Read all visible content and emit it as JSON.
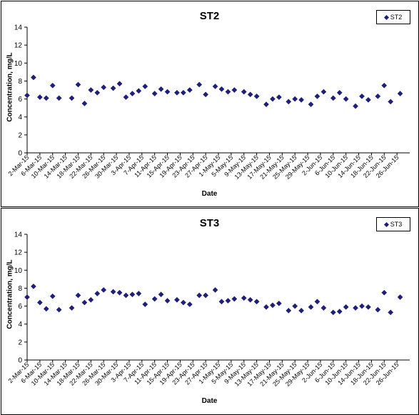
{
  "chart_data": [
    {
      "type": "scatter",
      "title": "ST2",
      "ylabel": "Concentration, mg/L",
      "xlabel": "Date",
      "ylim": [
        0,
        14
      ],
      "yticks": [
        "0",
        "2",
        "4",
        "6",
        "8",
        "10",
        "12",
        "14"
      ],
      "xticks": [
        "2-Mar-15",
        "6-Mar-15",
        "10-Mar-15",
        "14-Mar-15",
        "18-Mar-15",
        "22-Mar-15",
        "26-Mar-15",
        "30-Mar-15",
        "3-Apr-15",
        "7-Apr-15",
        "11-Apr-15",
        "15-Apr-15",
        "19-Apr-15",
        "23-Apr-15",
        "27-Apr-15",
        "1-May-15",
        "5-May-15",
        "9-May-15",
        "13-May-15",
        "17-May-15",
        "21-May-15",
        "25-May-15",
        "29-May-15",
        "2-Jun-15",
        "6-Jun-15",
        "10-Jun-15",
        "14-Jun-15",
        "18-Jun-15",
        "22-Jun-15",
        "26-Jun-15"
      ],
      "xlim": [
        "2-Mar-15",
        "30-Jun-15"
      ],
      "grid": false,
      "legend_position": "top-right",
      "color": "#1f1f7a",
      "series": [
        {
          "name": "ST2",
          "x": [
            "2-Mar-15",
            "4-Mar-15",
            "6-Mar-15",
            "8-Mar-15",
            "10-Mar-15",
            "12-Mar-15",
            "16-Mar-15",
            "18-Mar-15",
            "20-Mar-15",
            "22-Mar-15",
            "24-Mar-15",
            "26-Mar-15",
            "29-Mar-15",
            "31-Mar-15",
            "2-Apr-15",
            "4-Apr-15",
            "6-Apr-15",
            "8-Apr-15",
            "11-Apr-15",
            "13-Apr-15",
            "15-Apr-15",
            "18-Apr-15",
            "20-Apr-15",
            "22-Apr-15",
            "25-Apr-15",
            "27-Apr-15",
            "30-Apr-15",
            "2-May-15",
            "4-May-15",
            "6-May-15",
            "9-May-15",
            "11-May-15",
            "13-May-15",
            "16-May-15",
            "18-May-15",
            "20-May-15",
            "23-May-15",
            "25-May-15",
            "27-May-15",
            "30-May-15",
            "1-Jun-15",
            "3-Jun-15",
            "6-Jun-15",
            "8-Jun-15",
            "10-Jun-15",
            "13-Jun-15",
            "15-Jun-15",
            "17-Jun-15",
            "20-Jun-15",
            "22-Jun-15",
            "24-Jun-15",
            "27-Jun-15"
          ],
          "y": [
            6.4,
            8.4,
            6.2,
            6.1,
            7.5,
            6.1,
            6.1,
            7.6,
            5.5,
            7.0,
            6.7,
            7.3,
            7.2,
            7.7,
            6.2,
            6.6,
            6.9,
            7.4,
            6.6,
            7.1,
            6.8,
            6.7,
            6.7,
            7.0,
            7.6,
            6.5,
            7.4,
            7.1,
            6.8,
            7.0,
            6.8,
            6.5,
            6.3,
            5.4,
            6.0,
            6.2,
            5.7,
            6.0,
            5.9,
            5.4,
            6.3,
            6.8,
            6.1,
            6.7,
            6.0,
            5.2,
            6.3,
            5.9,
            6.3,
            7.5,
            5.7,
            6.6
          ]
        }
      ]
    },
    {
      "type": "scatter",
      "title": "ST3",
      "ylabel": "Concentration, mg/L",
      "xlabel": "Date",
      "ylim": [
        0,
        14
      ],
      "yticks": [
        "0",
        "2",
        "4",
        "6",
        "8",
        "10",
        "12",
        "14"
      ],
      "xticks": [
        "2-Mar-15",
        "6-Mar-15",
        "10-Mar-15",
        "14-Mar-15",
        "18-Mar-15",
        "22-Mar-15",
        "26-Mar-15",
        "30-Mar-15",
        "3-Apr-15",
        "7-Apr-15",
        "11-Apr-15",
        "15-Apr-15",
        "19-Apr-15",
        "23-Apr-15",
        "27-Apr-15",
        "1-May-15",
        "5-May-15",
        "9-May-15",
        "13-May-15",
        "17-May-15",
        "21-May-15",
        "25-May-15",
        "29-May-15",
        "2-Jun-15",
        "6-Jun-15",
        "10-Jun-15",
        "14-Jun-15",
        "18-Jun-15",
        "22-Jun-15",
        "26-Jun-15"
      ],
      "xlim": [
        "2-Mar-15",
        "30-Jun-15"
      ],
      "grid": false,
      "legend_position": "top-right",
      "color": "#1f1f7a",
      "series": [
        {
          "name": "ST3",
          "x": [
            "2-Mar-15",
            "4-Mar-15",
            "6-Mar-15",
            "8-Mar-15",
            "10-Mar-15",
            "12-Mar-15",
            "16-Mar-15",
            "18-Mar-15",
            "20-Mar-15",
            "22-Mar-15",
            "24-Mar-15",
            "26-Mar-15",
            "29-Mar-15",
            "31-Mar-15",
            "2-Apr-15",
            "4-Apr-15",
            "6-Apr-15",
            "8-Apr-15",
            "11-Apr-15",
            "13-Apr-15",
            "15-Apr-15",
            "18-Apr-15",
            "20-Apr-15",
            "22-Apr-15",
            "25-Apr-15",
            "27-Apr-15",
            "30-Apr-15",
            "2-May-15",
            "4-May-15",
            "6-May-15",
            "9-May-15",
            "11-May-15",
            "13-May-15",
            "16-May-15",
            "18-May-15",
            "20-May-15",
            "23-May-15",
            "25-May-15",
            "27-May-15",
            "30-May-15",
            "1-Jun-15",
            "3-Jun-15",
            "6-Jun-15",
            "8-Jun-15",
            "10-Jun-15",
            "13-Jun-15",
            "15-Jun-15",
            "17-Jun-15",
            "20-Jun-15",
            "22-Jun-15",
            "24-Jun-15",
            "27-Jun-15"
          ],
          "y": [
            7.0,
            8.2,
            6.4,
            5.7,
            7.1,
            5.6,
            5.8,
            7.2,
            6.4,
            6.7,
            7.4,
            7.8,
            7.6,
            7.5,
            7.2,
            7.3,
            7.4,
            6.2,
            6.8,
            7.3,
            6.6,
            6.7,
            6.4,
            6.2,
            7.2,
            7.2,
            7.8,
            6.5,
            6.6,
            6.8,
            6.9,
            6.7,
            6.5,
            5.9,
            6.1,
            6.3,
            5.5,
            6.0,
            5.5,
            5.9,
            6.5,
            5.8,
            5.3,
            5.4,
            5.9,
            5.8,
            6.0,
            5.9,
            5.6,
            7.5,
            5.3,
            7.0
          ]
        }
      ]
    }
  ]
}
